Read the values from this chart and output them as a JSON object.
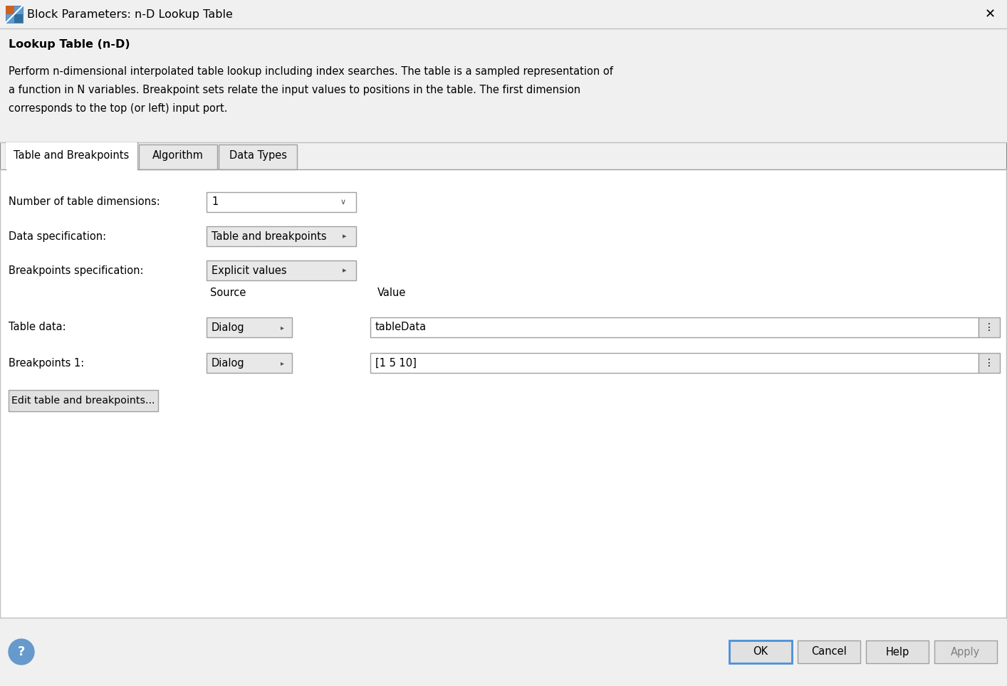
{
  "title": "Block Parameters: n-D Lookup Table",
  "section_title": "Lookup Table (n-D)",
  "desc_line1": "Perform n-dimensional interpolated table lookup including index searches. The table is a sampled representation of",
  "desc_line2": "a function in N variables. Breakpoint sets relate the input values to positions in the table. The first dimension",
  "desc_line3": "corresponds to the top (or left) input port.",
  "tabs": [
    "Table and Breakpoints",
    "Algorithm",
    "Data Types"
  ],
  "active_tab": 0,
  "field1_label": "Number of table dimensions:",
  "field1_value": "1",
  "field2_label": "Data specification:",
  "field2_value": "Table and breakpoints",
  "field3_label": "Breakpoints specification:",
  "field3_value": "Explicit values",
  "col_source": "Source",
  "col_value": "Value",
  "row1_label": "Table data:",
  "row1_source": "Dialog",
  "row1_value": "tableData",
  "row2_label": "Breakpoints 1:",
  "row2_source": "Dialog",
  "row2_value": "[1 5 10]",
  "btn_edit": "Edit table and breakpoints...",
  "btn_ok": "OK",
  "btn_cancel": "Cancel",
  "btn_help": "Help",
  "btn_apply": "Apply",
  "bg_gray": "#F0F0F0",
  "white": "#FFFFFF",
  "border_dark": "#A0A0A0",
  "border_light": "#C8C8C8",
  "text_black": "#000000",
  "text_gray": "#808080",
  "dropdown_bg": "#E8E8E8",
  "title_bar_bg": "#F0F0F0",
  "section_bg": "#F0F0F0",
  "content_bg": "#FFFFFF",
  "btn_bg": "#E1E1E1",
  "ok_border": "#4A90D9",
  "tab_active_bg": "#FFFFFF",
  "tab_inactive_bg": "#E8E8E8",
  "icon_blue": "#5B9BD5",
  "icon_orange": "#D06020"
}
